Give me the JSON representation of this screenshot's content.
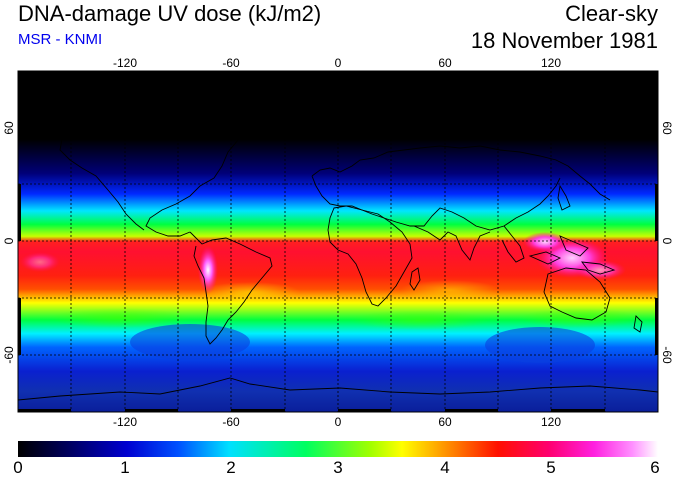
{
  "header": {
    "title": "DNA-damage UV dose (kJ/m2)",
    "source": "MSR - KNMI",
    "condition": "Clear-sky",
    "date": "18 November 1981"
  },
  "map": {
    "lon_ticks": [
      "-120",
      "-60",
      "0",
      "60",
      "120"
    ],
    "lat_ticks": [
      "60",
      "0",
      "-60"
    ],
    "lon_range": [
      -180,
      180
    ],
    "lat_range": [
      -90,
      90
    ],
    "grid": "dashed 30°",
    "peak_regions": [
      "Andes / western South America",
      "Maritime Continent / New Guinea"
    ]
  },
  "colorbar": {
    "ticks": [
      "0",
      "1",
      "2",
      "3",
      "4",
      "5",
      "6"
    ],
    "range": [
      0,
      6
    ],
    "colors": [
      "#000000",
      "#0000c8",
      "#0050ff",
      "#00ffff",
      "#00ff00",
      "#ffff00",
      "#ff8000",
      "#ff0000",
      "#ff0090",
      "#ff60ff",
      "#ffffff"
    ]
  }
}
